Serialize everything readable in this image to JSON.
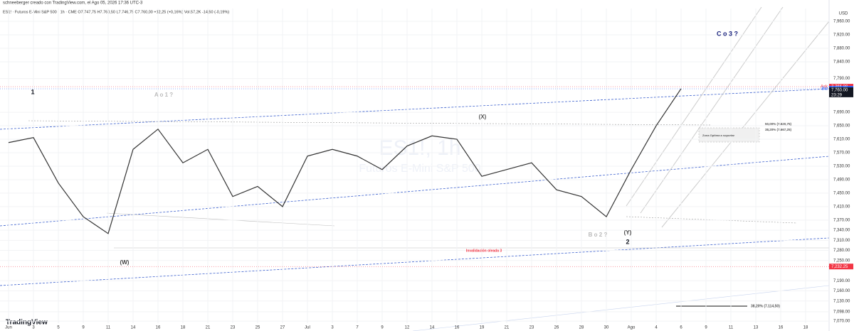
{
  "header": "schneeberger creado con TradingView.com, el Ago 05, 2026 17:36 UTC-3",
  "footer": "TradingView",
  "chart_data": {
    "type": "line",
    "title": "ES1! · Futuros E-Mini S&P 500 · 1h · CME  O7.747,75 H7.760,50 L7.746,75 C7.760,00 +12,25 (+0,16%) Vol.57,2K -14,50 (-0,19%)",
    "watermark": [
      "ES1!, 1h",
      "Futuros E-Mini S&P 500"
    ],
    "currency": "USD",
    "categories": [
      "Jun",
      "3",
      "5",
      "9",
      "11",
      "14",
      "16",
      "18",
      "21",
      "23",
      "25",
      "27",
      "Jul",
      "3",
      "7",
      "9",
      "12",
      "14",
      "16",
      "19",
      "21",
      "23",
      "26",
      "28",
      "30",
      "Ago",
      "4",
      "6",
      "9",
      "11",
      "13",
      "16",
      "18"
    ],
    "series": [
      {
        "name": "ES1!",
        "color": "#333333",
        "values": [
          7600,
          7615,
          7480,
          7380,
          7330,
          7580,
          7640,
          7540,
          7580,
          7440,
          7470,
          7410,
          7560,
          7580,
          7560,
          7520,
          7590,
          7620,
          7610,
          7500,
          7520,
          7540,
          7460,
          7440,
          7380,
          7520,
          7650,
          7760,
          null,
          null,
          null,
          null,
          null
        ]
      }
    ],
    "ylim": [
      7064,
      7998
    ],
    "yticks": [
      {
        "value": 7960,
        "label": "7,960.00"
      },
      {
        "value": 7920,
        "label": "7,920.00"
      },
      {
        "value": 7880,
        "label": "7,880.00"
      },
      {
        "value": 7840,
        "label": "7,840.00"
      },
      {
        "value": 7790,
        "label": "7,790.00"
      },
      {
        "value": 7690,
        "label": "7,690.00"
      },
      {
        "value": 7650,
        "label": "7,650.00"
      },
      {
        "value": 7610,
        "label": "7,610.00"
      },
      {
        "value": 7570,
        "label": "7,570.00"
      },
      {
        "value": 7530,
        "label": "7,530.00"
      },
      {
        "value": 7490,
        "label": "7,490.00"
      },
      {
        "value": 7450,
        "label": "7,450.00"
      },
      {
        "value": 7410,
        "label": "7,410.00"
      },
      {
        "value": 7370,
        "label": "7,370.00"
      },
      {
        "value": 7340,
        "label": "7,340.00"
      },
      {
        "value": 7310,
        "label": "7,310.00"
      },
      {
        "value": 7280,
        "label": "7,280.00"
      },
      {
        "value": 7250,
        "label": "7,250.00"
      },
      {
        "value": 7190,
        "label": "7,190.00"
      },
      {
        "value": 7160,
        "label": "7,160.00"
      },
      {
        "value": 7130,
        "label": "7,130.00"
      },
      {
        "value": 7098,
        "label": "7,098.00"
      },
      {
        "value": 7070,
        "label": "7,070.00"
      }
    ],
    "grid": true,
    "price_labels": [
      {
        "name": "Ask",
        "value": 7766,
        "label": "7,766.00",
        "color": "#f23645"
      },
      {
        "name": "Bid",
        "value": 7759.75,
        "label": "7,759.75",
        "color": "#2962ff"
      },
      {
        "value": 7232.25,
        "label": "7,232.25",
        "color": "#f23645"
      }
    ],
    "last_price": {
      "value": 7760,
      "label": "7,760.00",
      "countdown": "23:29"
    },
    "annotations": [
      "1",
      "A o 1 ?",
      "(X)",
      "B o 2 ?",
      "(Y)",
      "2",
      "C o 3 ?",
      "(W)",
      "Invalidación oleada 3",
      "38,20% (7.667,25)",
      "50,00% (7.620,75)",
      "Zona Optima a soportar",
      "38,20% (7.114,50)"
    ]
  }
}
